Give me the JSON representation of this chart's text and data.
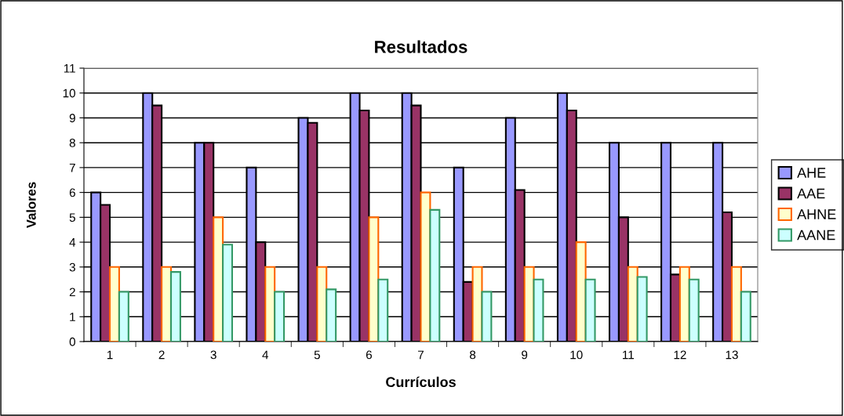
{
  "chart_data": {
    "type": "bar",
    "title": "Resultados",
    "xlabel": "Currículos",
    "ylabel": "Valores",
    "categories": [
      "1",
      "2",
      "3",
      "4",
      "5",
      "6",
      "7",
      "8",
      "9",
      "10",
      "11",
      "12",
      "13"
    ],
    "series": [
      {
        "name": "AHE",
        "color": "#9999ff",
        "values": [
          6,
          10,
          8,
          7,
          9,
          10,
          10,
          7,
          9,
          10,
          8,
          8,
          8
        ]
      },
      {
        "name": "AAE",
        "color": "#993366",
        "values": [
          5.5,
          9.5,
          8,
          4,
          8.8,
          9.3,
          9.5,
          2.4,
          6.1,
          9.3,
          5,
          2.7,
          5.2
        ]
      },
      {
        "name": "AHNE",
        "color": "#ffffcc",
        "values": [
          3,
          3,
          5,
          3,
          3,
          5,
          6,
          3,
          3,
          4,
          3,
          3,
          3
        ]
      },
      {
        "name": "AANE",
        "color": "#ccffff",
        "values": [
          2,
          2.8,
          3.9,
          2,
          2.1,
          2.5,
          5.3,
          2,
          2.5,
          2.5,
          2.6,
          2.5,
          2
        ]
      }
    ],
    "ylim": [
      0,
      11
    ],
    "yticks": [
      0,
      1,
      2,
      3,
      4,
      5,
      6,
      7,
      8,
      9,
      10,
      11
    ],
    "grid": "y",
    "legend": "right"
  }
}
